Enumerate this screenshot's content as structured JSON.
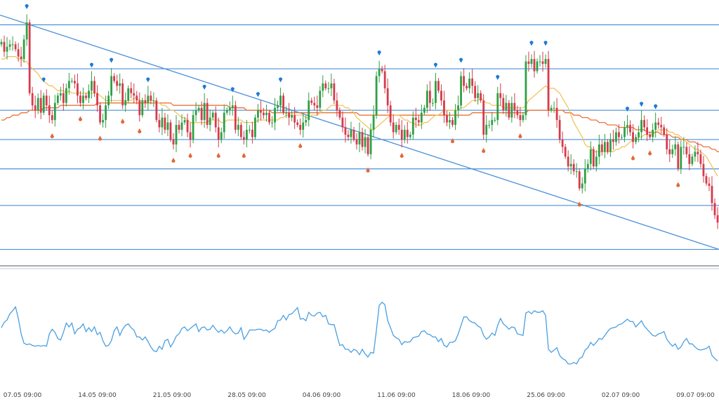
{
  "chart_data": [
    {
      "type": "candlestick",
      "title": "",
      "xlabel": "",
      "ylabel": "",
      "x_tick_labels": [
        "07.05 09:00",
        "14.05 09:00",
        "21.05 09:00",
        "28.05 09:00",
        "04.06 09:00",
        "11.06 09:00",
        "18.06 09:00",
        "25.06 09:00",
        "02.07 09:00",
        "09.07 09:00"
      ],
      "ylim": [
        0,
        100
      ],
      "grid": false,
      "colors": {
        "up": "#2ea043",
        "down": "#d63a4a",
        "ma_fast": "#f0c050",
        "ma_slow": "#e8743a",
        "levels": "#4a90d9",
        "up_marker": "#1e7ad6",
        "down_marker": "#e06a3a"
      },
      "horizontal_levels": [
        95,
        77,
        60,
        48,
        36,
        21,
        3
      ],
      "trendline": {
        "from": [
          0,
          99
        ],
        "to": [
          100,
          3
        ]
      },
      "close": [
        88,
        84,
        86,
        87,
        87,
        85,
        82,
        81,
        89,
        96,
        67,
        62,
        60,
        65,
        59,
        66,
        62,
        58,
        56,
        63,
        66,
        67,
        63,
        69,
        72,
        72,
        71,
        66,
        63,
        66,
        65,
        68,
        72,
        67,
        62,
        55,
        56,
        62,
        66,
        74,
        72,
        70,
        71,
        62,
        64,
        69,
        67,
        66,
        64,
        58,
        64,
        63,
        66,
        64,
        64,
        56,
        53,
        57,
        52,
        55,
        48,
        46,
        54,
        52,
        55,
        56,
        51,
        48,
        58,
        60,
        61,
        56,
        63,
        54,
        57,
        59,
        53,
        48,
        51,
        59,
        60,
        61,
        62,
        52,
        54,
        49,
        48,
        52,
        52,
        49,
        57,
        60,
        59,
        58,
        59,
        55,
        55,
        61,
        62,
        66,
        59,
        59,
        57,
        58,
        55,
        54,
        52,
        55,
        56,
        64,
        63,
        62,
        61,
        68,
        71,
        69,
        69,
        71,
        64,
        60,
        57,
        53,
        50,
        49,
        52,
        48,
        46,
        51,
        45,
        49,
        42,
        52,
        58,
        74,
        77,
        76,
        69,
        62,
        55,
        51,
        54,
        52,
        48,
        52,
        49,
        50,
        57,
        56,
        55,
        59,
        61,
        68,
        63,
        63,
        72,
        68,
        64,
        58,
        55,
        56,
        54,
        60,
        62,
        74,
        70,
        69,
        73,
        70,
        65,
        67,
        64,
        50,
        54,
        54,
        56,
        56,
        67,
        65,
        60,
        63,
        57,
        63,
        60,
        58,
        56,
        58,
        80,
        79,
        81,
        76,
        80,
        80,
        79,
        81,
        60,
        61,
        61,
        56,
        48,
        45,
        41,
        37,
        38,
        35,
        35,
        28,
        30,
        36,
        38,
        44,
        37,
        41,
        46,
        43,
        47,
        43,
        48,
        47,
        51,
        49,
        49,
        53,
        54,
        51,
        47,
        49,
        51,
        56,
        53,
        50,
        49,
        52,
        55,
        54,
        53,
        50,
        44,
        42,
        44,
        46,
        36,
        45,
        45,
        42,
        38,
        41,
        43,
        42,
        38,
        33,
        30,
        29,
        22,
        17,
        14
      ],
      "ma_fast": [
        81,
        81,
        82,
        82,
        82,
        82,
        81,
        81,
        80,
        80,
        78,
        77,
        76,
        75,
        73,
        72,
        71,
        70,
        70,
        69,
        68,
        68,
        68,
        67,
        68,
        67,
        67,
        67,
        67,
        67,
        67,
        67,
        67,
        67,
        67,
        66,
        65,
        64,
        64,
        64,
        64,
        64,
        64,
        64,
        64,
        64,
        64,
        65,
        65,
        64,
        64,
        64,
        64,
        64,
        64,
        63,
        63,
        62,
        62,
        61,
        60,
        60,
        59,
        58,
        57,
        57,
        56,
        55,
        55,
        55,
        55,
        55,
        55,
        55,
        56,
        56,
        56,
        56,
        55,
        55,
        56,
        56,
        56,
        56,
        56,
        56,
        55,
        55,
        55,
        55,
        55,
        56,
        56,
        56,
        56,
        56,
        56,
        56,
        56,
        57,
        57,
        58,
        58,
        58,
        58,
        58,
        58,
        58,
        57,
        57,
        58,
        58,
        58,
        59,
        60,
        60,
        61,
        62,
        62,
        62,
        62,
        62,
        61,
        61,
        60,
        59,
        57,
        56,
        55,
        54,
        53,
        52,
        52,
        53,
        54,
        55,
        56,
        57,
        58,
        58,
        58,
        58,
        57,
        56,
        56,
        55,
        55,
        54,
        54,
        54,
        55,
        55,
        56,
        57,
        58,
        58,
        59,
        60,
        60,
        60,
        60,
        60,
        60,
        61,
        61,
        62,
        63,
        64,
        64,
        64,
        65,
        64,
        63,
        63,
        62,
        62,
        62,
        62,
        61,
        61,
        61,
        61,
        61,
        61,
        61,
        61,
        62,
        64,
        65,
        66,
        67,
        68,
        69,
        70,
        69,
        69,
        69,
        68,
        67,
        65,
        63,
        61,
        58,
        55,
        53,
        51,
        49,
        46,
        45,
        45,
        43,
        43,
        43,
        43,
        43,
        43,
        43,
        43,
        44,
        44,
        45,
        45,
        46,
        47,
        48,
        48,
        49,
        49,
        50,
        50,
        50,
        50,
        51,
        52,
        52,
        52,
        52,
        51,
        51,
        50,
        50,
        49,
        48,
        47,
        46,
        45,
        44,
        44,
        43,
        42,
        41,
        39,
        37,
        35,
        33
      ],
      "ma_slow": [
        56,
        56,
        57,
        57,
        58,
        58,
        58,
        59,
        59,
        59,
        60,
        60,
        60,
        60,
        60,
        61,
        61,
        61,
        61,
        61,
        61,
        62,
        62,
        62,
        62,
        62,
        62,
        62,
        62,
        62,
        62,
        62,
        62,
        62,
        63,
        63,
        63,
        63,
        63,
        63,
        63,
        63,
        63,
        63,
        63,
        63,
        63,
        63,
        63,
        63,
        63,
        63,
        63,
        63,
        63,
        63,
        63,
        63,
        63,
        63,
        63,
        62,
        62,
        62,
        62,
        62,
        62,
        62,
        62,
        62,
        62,
        62,
        62,
        62,
        62,
        62,
        62,
        62,
        62,
        62,
        62,
        61,
        61,
        61,
        61,
        61,
        61,
        60,
        60,
        60,
        60,
        60,
        60,
        60,
        60,
        60,
        59,
        59,
        59,
        59,
        59,
        59,
        59,
        59,
        59,
        59,
        59,
        59,
        59,
        59,
        59,
        59,
        59,
        59,
        59,
        59,
        59,
        59,
        59,
        59,
        59,
        59,
        59,
        59,
        59,
        59,
        59,
        58,
        58,
        58,
        58,
        58,
        58,
        58,
        58,
        58,
        58,
        58,
        58,
        58,
        58,
        58,
        58,
        58,
        58,
        58,
        58,
        58,
        58,
        58,
        58,
        58,
        58,
        58,
        58,
        58,
        58,
        58,
        58,
        58,
        58,
        58,
        58,
        58,
        58,
        58,
        58,
        59,
        59,
        59,
        59,
        59,
        59,
        59,
        59,
        59,
        59,
        59,
        59,
        59,
        59,
        59,
        59,
        59,
        59,
        59,
        59,
        60,
        60,
        60,
        60,
        60,
        60,
        60,
        60,
        60,
        60,
        60,
        60,
        60,
        59,
        59,
        59,
        58,
        58,
        58,
        57,
        57,
        57,
        56,
        56,
        56,
        55,
        55,
        55,
        54,
        54,
        54,
        54,
        53,
        53,
        53,
        53,
        53,
        53,
        52,
        52,
        52,
        52,
        51,
        51,
        51,
        51,
        51,
        50,
        50,
        50,
        50,
        49,
        49,
        49,
        48,
        48,
        48,
        47,
        47,
        47,
        46,
        46,
        45,
        45,
        45,
        44,
        44,
        43,
        43,
        43,
        42,
        42
      ]
    },
    {
      "type": "line",
      "title": "",
      "xlabel": "",
      "ylabel": "",
      "ylim": [
        0,
        100
      ],
      "colors": {
        "line": "#4a9fe0"
      },
      "series": [
        {
          "values": [
            48,
            55,
            58,
            66,
            70,
            75,
            60,
            40,
            28,
            26,
            27,
            25,
            24,
            25,
            24,
            25,
            24,
            40,
            46,
            42,
            34,
            32,
            42,
            54,
            49,
            54,
            40,
            46,
            48,
            53,
            43,
            48,
            43,
            49,
            39,
            42,
            31,
            24,
            25,
            31,
            44,
            49,
            38,
            46,
            51,
            53,
            48,
            45,
            36,
            36,
            32,
            36,
            30,
            23,
            18,
            17,
            24,
            20,
            31,
            33,
            23,
            29,
            37,
            40,
            47,
            49,
            44,
            47,
            50,
            53,
            43,
            48,
            49,
            45,
            46,
            51,
            46,
            42,
            45,
            41,
            44,
            49,
            43,
            40,
            41,
            48,
            33,
            38,
            45,
            45,
            45,
            46,
            46,
            44,
            45,
            42,
            45,
            47,
            57,
            58,
            64,
            58,
            65,
            66,
            70,
            74,
            59,
            60,
            57,
            68,
            64,
            63,
            67,
            68,
            62,
            64,
            53,
            52,
            52,
            38,
            25,
            26,
            20,
            20,
            16,
            20,
            18,
            13,
            20,
            14,
            10,
            16,
            15,
            45,
            77,
            81,
            78,
            57,
            48,
            38,
            35,
            33,
            26,
            30,
            29,
            30,
            35,
            36,
            37,
            43,
            44,
            40,
            39,
            36,
            36,
            30,
            34,
            25,
            23,
            29,
            29,
            31,
            40,
            51,
            62,
            62,
            57,
            55,
            54,
            50,
            48,
            38,
            33,
            36,
            41,
            38,
            51,
            60,
            53,
            50,
            46,
            49,
            48,
            40,
            39,
            38,
            67,
            69,
            66,
            70,
            68,
            68,
            70,
            64,
            20,
            16,
            19,
            22,
            12,
            8,
            6,
            1,
            1,
            3,
            1,
            8,
            10,
            19,
            22,
            29,
            25,
            29,
            34,
            33,
            38,
            43,
            47,
            48,
            49,
            52,
            53,
            56,
            59,
            56,
            56,
            49,
            53,
            57,
            50,
            46,
            42,
            38,
            37,
            40,
            41,
            43,
            33,
            28,
            24,
            27,
            20,
            23,
            30,
            34,
            27,
            27,
            23,
            20,
            19,
            20,
            21,
            24,
            12,
            8,
            5
          ]
        }
      ]
    }
  ]
}
